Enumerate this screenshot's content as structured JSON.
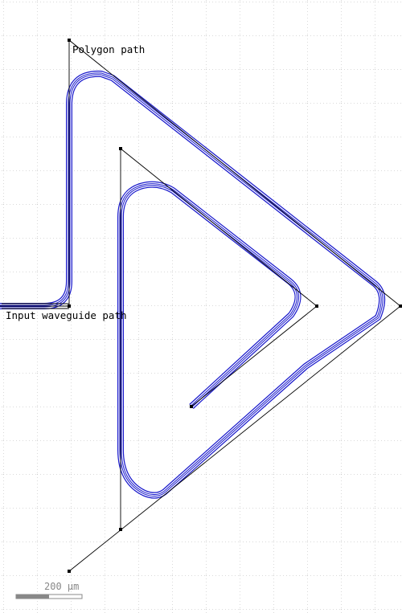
{
  "labels": {
    "polygon_path": "Polygon path",
    "input_waveguide_path": "Input waveguide path"
  },
  "scale_bar": {
    "label": "200 µm"
  },
  "colors": {
    "waveguide": "#1a1acc",
    "control_line": "#000000",
    "grid": "#b4b4b4",
    "scale_bar": "#888888"
  }
}
